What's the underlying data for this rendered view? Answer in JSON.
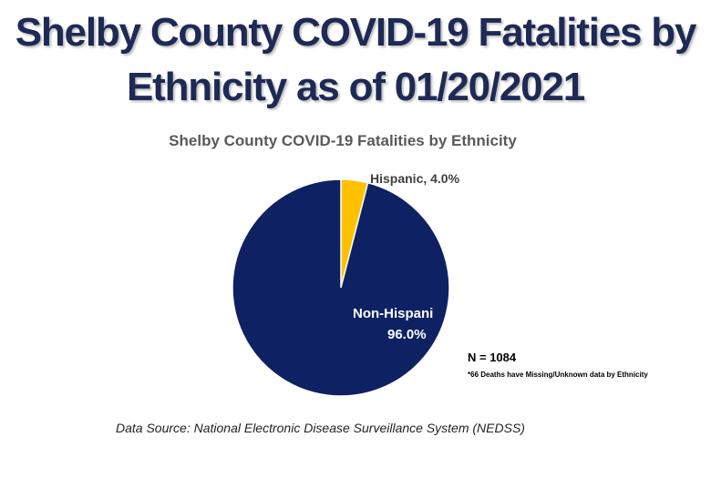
{
  "header": {
    "title_line1": "Shelby County COVID-19 Fatalities by",
    "title_line2": "Ethnicity as of 01/20/2021"
  },
  "chart_data": {
    "type": "pie",
    "title": "Shelby County COVID-19 Fatalities by Ethnicity",
    "slices": [
      {
        "label": "Hispanic",
        "value": 4.0,
        "color": "#ffc000",
        "data_label": "Hispanic, 4.0%"
      },
      {
        "label": "Non-Hispanic",
        "value": 96.0,
        "color": "#0e2163",
        "data_label_line1": "Non-Hispani",
        "data_label_line2": "96.0%"
      }
    ],
    "annotations": {
      "n_label": "N = 1084",
      "note": "*66 Deaths have Missing/Unknown data by Ethnicity"
    }
  },
  "footer": {
    "source": "Data Source: National Electronic Disease Surveillance System (NEDSS)"
  }
}
